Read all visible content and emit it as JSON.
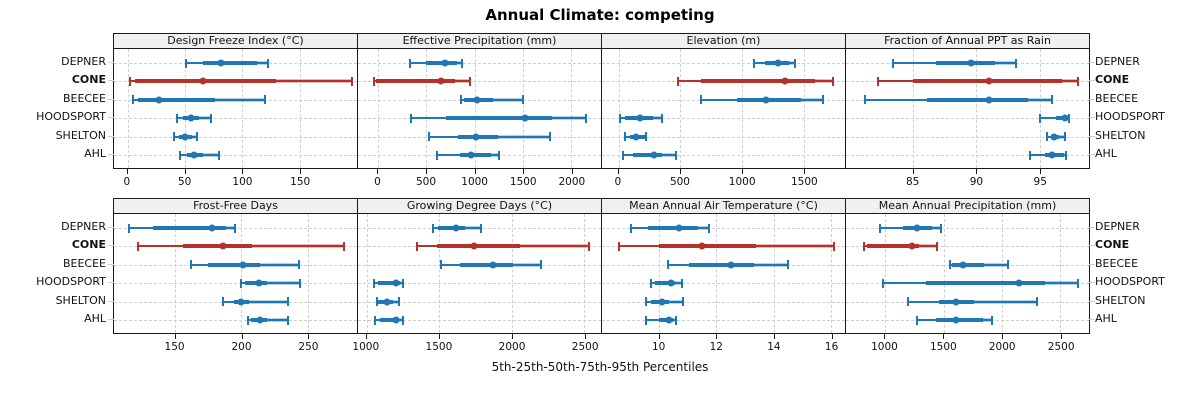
{
  "title": "Annual Climate: competing",
  "caption": "5th-25th-50th-75th-95th Percentiles",
  "stations": [
    "DEPNER",
    "CONE",
    "BEECEE",
    "HOODSPORT",
    "SHELTON",
    "AHL"
  ],
  "highlight_station": "CONE",
  "percentiles_shown": [
    5,
    25,
    50,
    75,
    95
  ],
  "colors": {
    "series_blue": "#1f77b4",
    "series_red": "#b5322b",
    "strip_background": "#f0f0f0",
    "panel_border": "#1a1a1a",
    "gridline": "#cfcfcf"
  },
  "chart_data": [
    {
      "type": "scatter",
      "title": "Design Freeze Index (°C)",
      "xlim": [
        -12,
        200
      ],
      "ticks": [
        0,
        50,
        100,
        150
      ],
      "series": [
        {
          "station": "DEPNER",
          "p": [
            51,
            66,
            81,
            113,
            122
          ]
        },
        {
          "station": "CONE",
          "p": [
            2,
            6,
            66,
            129,
            196
          ]
        },
        {
          "station": "BEECEE",
          "p": [
            5,
            9,
            27,
            76,
            120
          ]
        },
        {
          "station": "HOODSPORT",
          "p": [
            43,
            48,
            55,
            62,
            73
          ]
        },
        {
          "station": "SHELTON",
          "p": [
            40,
            45,
            50,
            56,
            60
          ]
        },
        {
          "station": "AHL",
          "p": [
            46,
            52,
            58,
            66,
            80
          ]
        }
      ]
    },
    {
      "type": "scatter",
      "title": "Effective Precipitation (mm)",
      "xlim": [
        -210,
        2310
      ],
      "ticks": [
        0,
        500,
        1000,
        1500,
        2000
      ],
      "series": [
        {
          "station": "DEPNER",
          "p": [
            330,
            500,
            690,
            820,
            865
          ]
        },
        {
          "station": "CONE",
          "p": [
            -40,
            -20,
            650,
            795,
            955
          ]
        },
        {
          "station": "BEECEE",
          "p": [
            860,
            885,
            1020,
            1190,
            1500
          ]
        },
        {
          "station": "HOODSPORT",
          "p": [
            340,
            700,
            1520,
            1800,
            2150
          ]
        },
        {
          "station": "SHELTON",
          "p": [
            530,
            830,
            1010,
            1240,
            1780
          ]
        },
        {
          "station": "AHL",
          "p": [
            610,
            850,
            965,
            1170,
            1255
          ]
        }
      ]
    },
    {
      "type": "scatter",
      "title": "Elevation (m)",
      "xlim": [
        -135,
        1835
      ],
      "ticks": [
        0,
        500,
        1000,
        1500
      ],
      "series": [
        {
          "station": "DEPNER",
          "p": [
            1100,
            1190,
            1290,
            1385,
            1430
          ]
        },
        {
          "station": "CONE",
          "p": [
            480,
            665,
            1345,
            1595,
            1740
          ]
        },
        {
          "station": "BEECEE",
          "p": [
            665,
            960,
            1195,
            1480,
            1660
          ]
        },
        {
          "station": "HOODSPORT",
          "p": [
            10,
            50,
            175,
            275,
            355
          ]
        },
        {
          "station": "SHELTON",
          "p": [
            55,
            90,
            140,
            215,
            225
          ]
        },
        {
          "station": "AHL",
          "p": [
            35,
            115,
            290,
            355,
            465
          ]
        }
      ]
    },
    {
      "type": "scatter",
      "title": "Fraction of Annual PPT as Rain",
      "xlim": [
        79.7,
        98.9
      ],
      "ticks": [
        85,
        90,
        95
      ],
      "series": [
        {
          "station": "DEPNER",
          "p": [
            83.4,
            86.8,
            89.6,
            91.5,
            93.1
          ]
        },
        {
          "station": "CONE",
          "p": [
            82.2,
            85.0,
            91.0,
            96.8,
            98.0
          ]
        },
        {
          "station": "BEECEE",
          "p": [
            81.2,
            86.1,
            91.0,
            94.1,
            96.0
          ]
        },
        {
          "station": "HOODSPORT",
          "p": [
            95.0,
            96.3,
            97.0,
            97.2,
            97.3
          ]
        },
        {
          "station": "SHELTON",
          "p": [
            95.6,
            95.9,
            96.1,
            96.5,
            97.0
          ]
        },
        {
          "station": "AHL",
          "p": [
            94.2,
            95.4,
            96.0,
            96.9,
            97.1
          ]
        }
      ]
    },
    {
      "type": "scatter",
      "title": "Frost-Free Days",
      "xlim": [
        104,
        287
      ],
      "ticks": [
        150,
        200,
        250
      ],
      "series": [
        {
          "station": "DEPNER",
          "p": [
            115,
            133,
            178,
            188,
            195
          ]
        },
        {
          "station": "CONE",
          "p": [
            122,
            156,
            186,
            208,
            277
          ]
        },
        {
          "station": "BEECEE",
          "p": [
            162,
            175,
            201,
            214,
            243
          ]
        },
        {
          "station": "HOODSPORT",
          "p": [
            200,
            203,
            213,
            219,
            244
          ]
        },
        {
          "station": "SHELTON",
          "p": [
            186,
            194,
            200,
            206,
            235
          ]
        },
        {
          "station": "AHL",
          "p": [
            205,
            207,
            214,
            219,
            235
          ]
        }
      ]
    },
    {
      "type": "scatter",
      "title": "Growing Degree Days (°C)",
      "xlim": [
        940,
        2615
      ],
      "ticks": [
        1000,
        1500,
        2000,
        2500
      ],
      "series": [
        {
          "station": "DEPNER",
          "p": [
            1455,
            1490,
            1615,
            1680,
            1785
          ]
        },
        {
          "station": "CONE",
          "p": [
            1350,
            1485,
            1740,
            2060,
            2530
          ]
        },
        {
          "station": "BEECEE",
          "p": [
            1510,
            1645,
            1870,
            2010,
            2200
          ]
        },
        {
          "station": "HOODSPORT",
          "p": [
            1050,
            1080,
            1200,
            1230,
            1250
          ]
        },
        {
          "station": "SHELTON",
          "p": [
            1070,
            1080,
            1140,
            1180,
            1225
          ]
        },
        {
          "station": "AHL",
          "p": [
            1060,
            1090,
            1200,
            1220,
            1250
          ]
        }
      ]
    },
    {
      "type": "scatter",
      "title": "Mean Annual Air Temperature (°C)",
      "xlim": [
        8.0,
        16.5
      ],
      "ticks": [
        10,
        12,
        14,
        16
      ],
      "series": [
        {
          "station": "DEPNER",
          "p": [
            9.0,
            9.6,
            10.7,
            11.35,
            11.75
          ]
        },
        {
          "station": "CONE",
          "p": [
            8.6,
            10.0,
            11.5,
            13.4,
            16.1
          ]
        },
        {
          "station": "BEECEE",
          "p": [
            10.3,
            11.05,
            12.5,
            13.3,
            14.5
          ]
        },
        {
          "station": "HOODSPORT",
          "p": [
            9.7,
            9.85,
            10.4,
            10.55,
            10.8
          ]
        },
        {
          "station": "SHELTON",
          "p": [
            9.55,
            9.7,
            10.1,
            10.35,
            10.85
          ]
        },
        {
          "station": "AHL",
          "p": [
            9.55,
            10.0,
            10.35,
            10.5,
            10.6
          ]
        }
      ]
    },
    {
      "type": "scatter",
      "title": "Mean Annual Precipitation (mm)",
      "xlim": [
        665,
        2745
      ],
      "ticks": [
        1000,
        1500,
        2000,
        2500
      ],
      "series": [
        {
          "station": "DEPNER",
          "p": [
            955,
            1150,
            1275,
            1405,
            1480
          ]
        },
        {
          "station": "CONE",
          "p": [
            820,
            845,
            1230,
            1290,
            1440
          ]
        },
        {
          "station": "BEECEE",
          "p": [
            1555,
            1575,
            1670,
            1845,
            2050
          ]
        },
        {
          "station": "HOODSPORT",
          "p": [
            985,
            1350,
            2145,
            2370,
            2655
          ]
        },
        {
          "station": "SHELTON",
          "p": [
            1195,
            1460,
            1610,
            1760,
            2300
          ]
        },
        {
          "station": "AHL",
          "p": [
            1270,
            1435,
            1610,
            1840,
            1915
          ]
        }
      ]
    }
  ]
}
